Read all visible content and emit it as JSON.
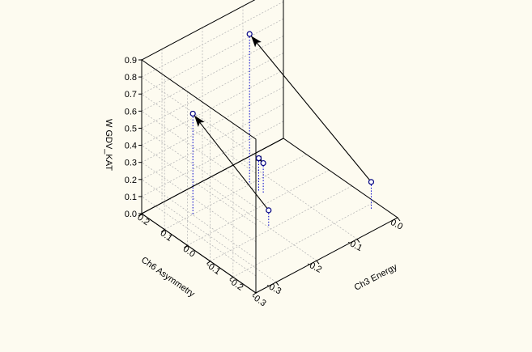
{
  "chart_data": {
    "type": "scatter3d",
    "xlabel": "Ch3 Energy",
    "ylabel": "Ch6 Asymmetry",
    "zlabel": "W GDV_KAT",
    "xlim": [
      -0.35,
      0.0
    ],
    "ylim": [
      -0.3,
      0.2
    ],
    "zlim": [
      0.0,
      0.9
    ],
    "xticks": [
      "-0.3",
      "-0.2",
      "-0.1",
      "0.0"
    ],
    "yticks": [
      "-0.3",
      "-0.2",
      "-0.1",
      "0.0",
      "0.1",
      "0.2"
    ],
    "zticks": [
      "0.0",
      "0.1",
      "0.2",
      "0.3",
      "0.4",
      "0.5",
      "0.6",
      "0.7",
      "0.8",
      "0.9"
    ],
    "grid": true,
    "points": [
      {
        "x": -0.28,
        "y": 0.1,
        "z": 0.59
      },
      {
        "x": -0.2,
        "y": -0.09,
        "z": 0.1
      },
      {
        "x": -0.14,
        "y": 0.1,
        "z": 0.88
      },
      {
        "x": -0.14,
        "y": 0.06,
        "z": 0.19
      },
      {
        "x": -0.14,
        "y": 0.04,
        "z": 0.18
      },
      {
        "x": -0.02,
        "y": -0.22,
        "z": 0.16
      }
    ],
    "arrows": [
      {
        "from": 1,
        "to": 0
      },
      {
        "from": 5,
        "to": 2
      },
      {
        "from": 3,
        "to": 4
      }
    ]
  }
}
